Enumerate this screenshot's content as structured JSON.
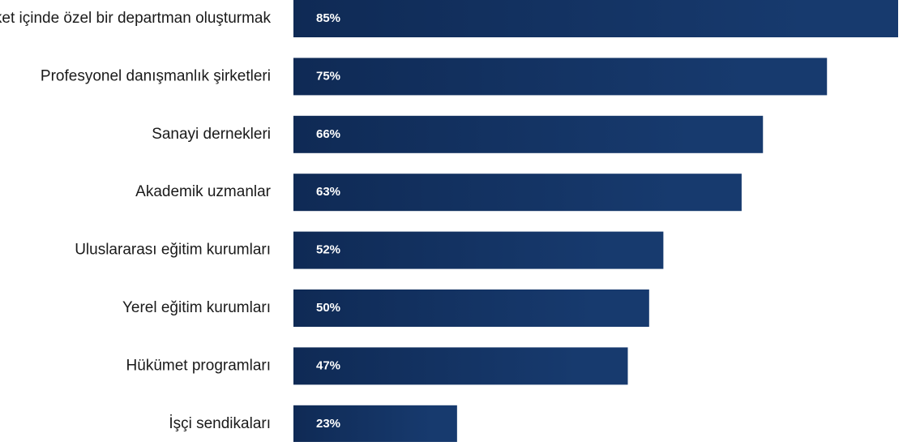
{
  "chart_data": {
    "type": "bar",
    "orientation": "horizontal",
    "categories": [
      "Şirket içinde özel bir departman oluşturmak",
      "Profesyonel danışmanlık şirketleri",
      "Sanayi dernekleri",
      "Akademik uzmanlar",
      "Uluslararası eğitim kurumları",
      "Yerel eğitim kurumları",
      "Hükümet programları",
      "İşçi sendikaları"
    ],
    "values": [
      85,
      75,
      66,
      63,
      52,
      50,
      47,
      23
    ],
    "value_labels": [
      "85%",
      "75%",
      "66%",
      "63%",
      "52%",
      "50%",
      "47%",
      "23%"
    ],
    "unit": "%",
    "xlim": [
      0,
      85
    ],
    "grid": false,
    "legend": "none",
    "bar_color": "#173a6e",
    "bar_color_dark": "#0f2a55",
    "label_color": "#ffffff",
    "category_color": "#1a1a1a"
  }
}
